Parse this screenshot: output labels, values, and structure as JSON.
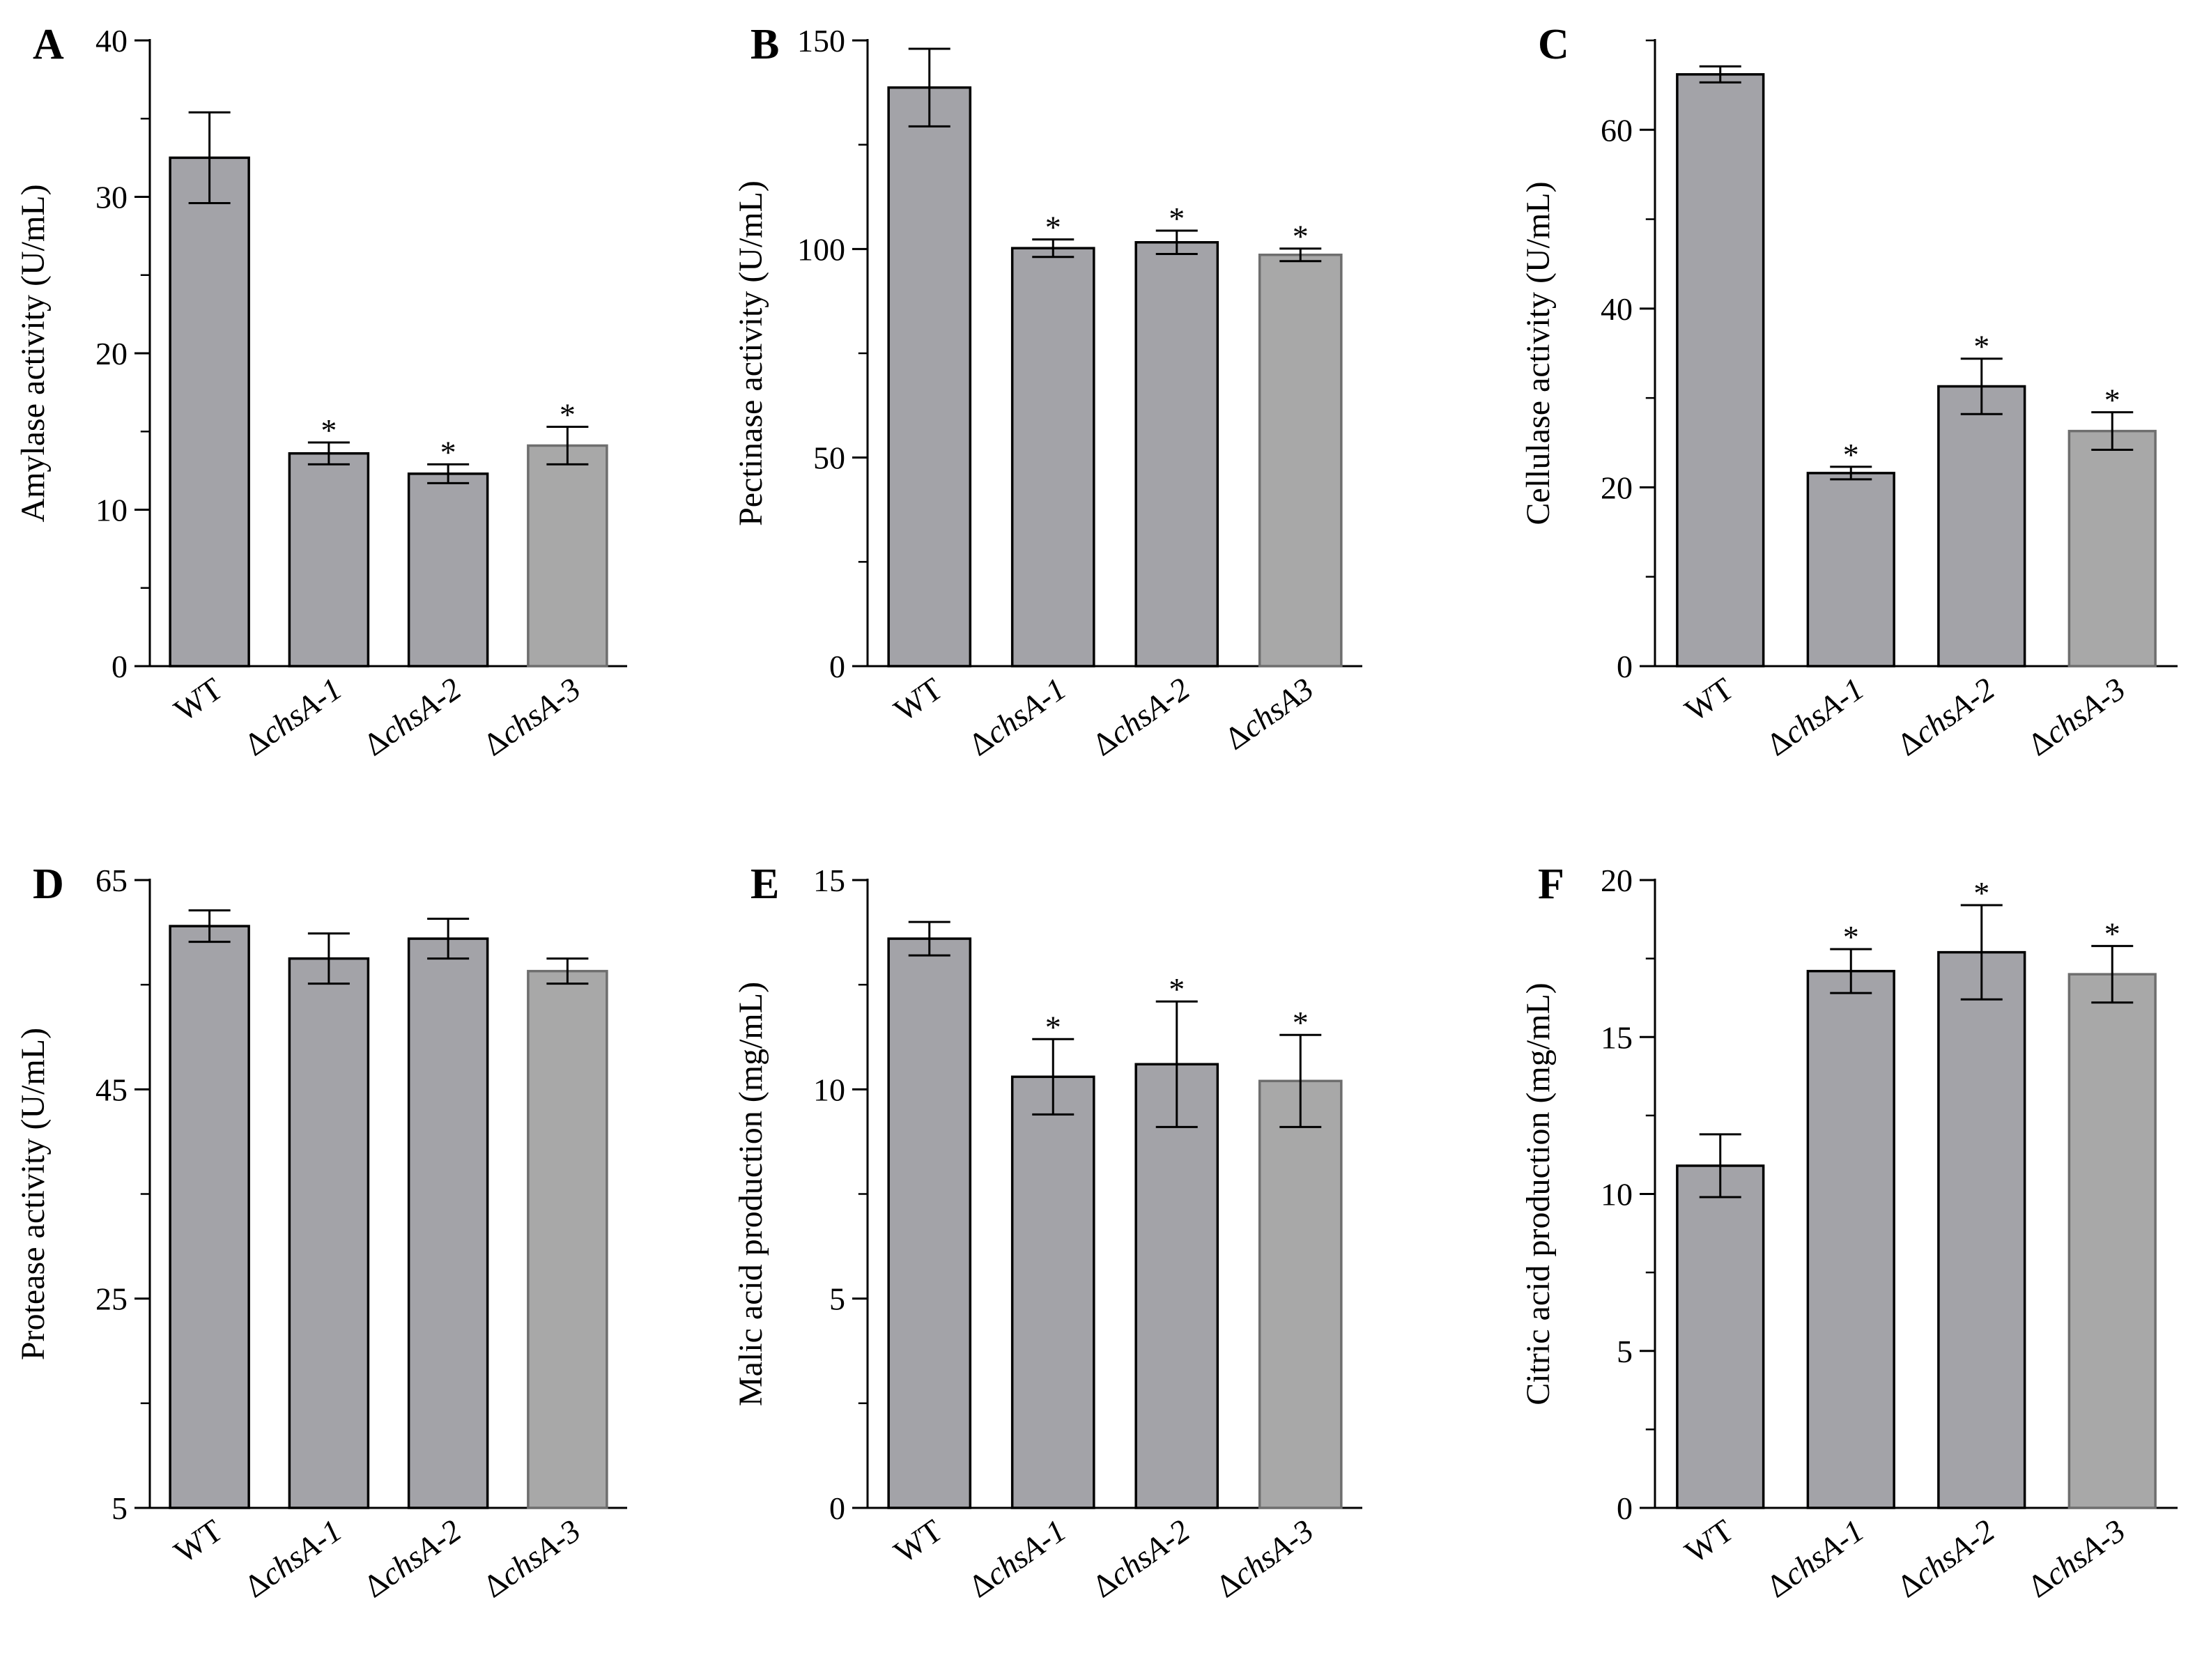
{
  "colors": {
    "bar_dark": "#a3a3a8",
    "bar_light": "#a8a8a8",
    "bar_edge_dark": "#000000",
    "bar_edge_light": "#6e6e6e",
    "axis": "#000000"
  },
  "chart_data": [
    {
      "panel": "A",
      "type": "bar",
      "ylabel": "Amylase activity (U/mL)",
      "ylim": [
        0,
        40
      ],
      "yticks": [
        0,
        10,
        20,
        30,
        40
      ],
      "categories": [
        "WT",
        "ΔchsA-1",
        "ΔchsA-2",
        "ΔchsA-3"
      ],
      "category_parts": [
        {
          "d": "",
          "t": "WT"
        },
        {
          "d": "Δ",
          "t": "chsA-1"
        },
        {
          "d": "Δ",
          "t": "chsA-2"
        },
        {
          "d": "Δ",
          "t": "chsA-3"
        }
      ],
      "values": [
        32.5,
        13.6,
        12.3,
        14.1
      ],
      "errors": [
        2.9,
        0.7,
        0.6,
        1.2
      ],
      "significance": [
        "",
        "*",
        "*",
        "*"
      ]
    },
    {
      "panel": "B",
      "type": "bar",
      "ylabel": "Pectinase activity (U/mL)",
      "ylim": [
        0,
        150
      ],
      "yticks": [
        0,
        50,
        100,
        150
      ],
      "categories": [
        "WT",
        "ΔchsA-1",
        "ΔchsA-2",
        "ΔchsA3"
      ],
      "category_parts": [
        {
          "d": "",
          "t": "WT"
        },
        {
          "d": "Δ",
          "t": "chsA-1"
        },
        {
          "d": "Δ",
          "t": "chsA-2"
        },
        {
          "d": "Δ",
          "t": "chsA3"
        }
      ],
      "values": [
        138.7,
        100.2,
        101.6,
        98.6
      ],
      "errors": [
        9.3,
        2.1,
        2.8,
        1.5
      ],
      "significance": [
        "",
        "*",
        "*",
        "*"
      ]
    },
    {
      "panel": "C",
      "type": "bar",
      "ylabel": "Cellulase activity (U/mL)",
      "ylim": [
        0,
        70
      ],
      "yticks": [
        0,
        20,
        40,
        60
      ],
      "categories": [
        "WT",
        "ΔchsA-1",
        "ΔchsA-2",
        "ΔchsA-3"
      ],
      "category_parts": [
        {
          "d": "",
          "t": "WT"
        },
        {
          "d": "Δ",
          "t": "chsA-1"
        },
        {
          "d": "Δ",
          "t": "chsA-2"
        },
        {
          "d": "Δ",
          "t": "chsA-3"
        }
      ],
      "values": [
        66.2,
        21.6,
        31.3,
        26.3
      ],
      "errors": [
        0.9,
        0.7,
        3.1,
        2.1
      ],
      "significance": [
        "",
        "*",
        "*",
        "*"
      ]
    },
    {
      "panel": "D",
      "type": "bar",
      "ylabel": "Protease activity (U/mL)",
      "ylim": [
        5,
        65
      ],
      "yticks": [
        5,
        25,
        45,
        65
      ],
      "categories": [
        "WT",
        "ΔchsA-1",
        "ΔchsA-2",
        "ΔchsA-3"
      ],
      "category_parts": [
        {
          "d": "",
          "t": "WT"
        },
        {
          "d": "Δ",
          "t": "chsA-1"
        },
        {
          "d": "Δ",
          "t": "chsA-2"
        },
        {
          "d": "Δ",
          "t": "chsA-3"
        }
      ],
      "values": [
        60.6,
        57.5,
        59.4,
        56.3
      ],
      "errors": [
        1.5,
        2.4,
        1.9,
        1.2
      ],
      "significance": [
        "",
        "",
        "",
        ""
      ]
    },
    {
      "panel": "E",
      "type": "bar",
      "ylabel": "Malic acid production (mg/mL)",
      "ylim": [
        0,
        15
      ],
      "yticks": [
        0,
        5,
        10,
        15
      ],
      "categories": [
        "WT",
        "ΔchsA-1",
        "ΔchsA-2",
        "ΔchsA-3"
      ],
      "category_parts": [
        {
          "d": "",
          "t": "WT"
        },
        {
          "d": "Δ",
          "t": "chsA-1"
        },
        {
          "d": "Δ",
          "t": "chsA-2"
        },
        {
          "d": "Δ",
          "t": "chsA-3"
        }
      ],
      "values": [
        13.6,
        10.3,
        10.6,
        10.2
      ],
      "errors": [
        0.4,
        0.9,
        1.5,
        1.1
      ],
      "significance": [
        "",
        "*",
        "*",
        "*"
      ]
    },
    {
      "panel": "F",
      "type": "bar",
      "ylabel": "Citric acid production (mg/mL)",
      "ylim": [
        0,
        20
      ],
      "yticks": [
        0,
        5,
        10,
        15,
        20
      ],
      "categories": [
        "WT",
        "ΔchsA-1",
        "ΔchsA-2",
        "ΔchsA-3"
      ],
      "category_parts": [
        {
          "d": "",
          "t": "WT"
        },
        {
          "d": "Δ",
          "t": "chsA-1"
        },
        {
          "d": "Δ",
          "t": "chsA-2"
        },
        {
          "d": "Δ",
          "t": "chsA-3"
        }
      ],
      "values": [
        10.9,
        17.1,
        17.7,
        17.0
      ],
      "errors": [
        1.0,
        0.7,
        1.5,
        0.9
      ],
      "significance": [
        "",
        "*",
        "*",
        "*"
      ]
    }
  ]
}
